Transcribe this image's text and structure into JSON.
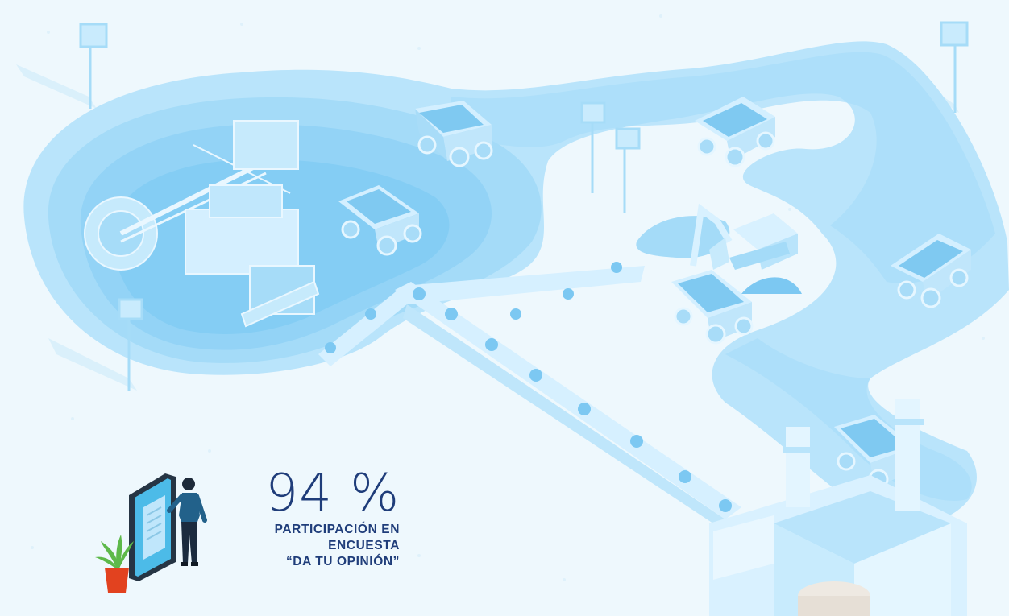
{
  "stat": {
    "value": "94 %",
    "label_lines": [
      "PARTICIPACIÓN EN",
      "ENCUESTA",
      "“DA TU OPINIÓN”"
    ]
  },
  "colors": {
    "background": "#eef8fd",
    "pit_light": "#b9e4fb",
    "pit_mid": "#92d3f6",
    "pit_deep": "#7cc8f2",
    "road": "#bfe6fb",
    "text": "#1f3d7a",
    "plant_pot": "#e2421f",
    "plant_leaf": "#5db94a"
  },
  "icons": [
    "mine-pit-illustration",
    "bucket-wheel-excavator-icon",
    "dump-truck-icon",
    "excavator-icon",
    "conveyor-belt-icon",
    "processing-plant-icon",
    "light-tower-icon",
    "tablet-survey-icon",
    "woman-figure-icon",
    "potted-plant-icon"
  ]
}
